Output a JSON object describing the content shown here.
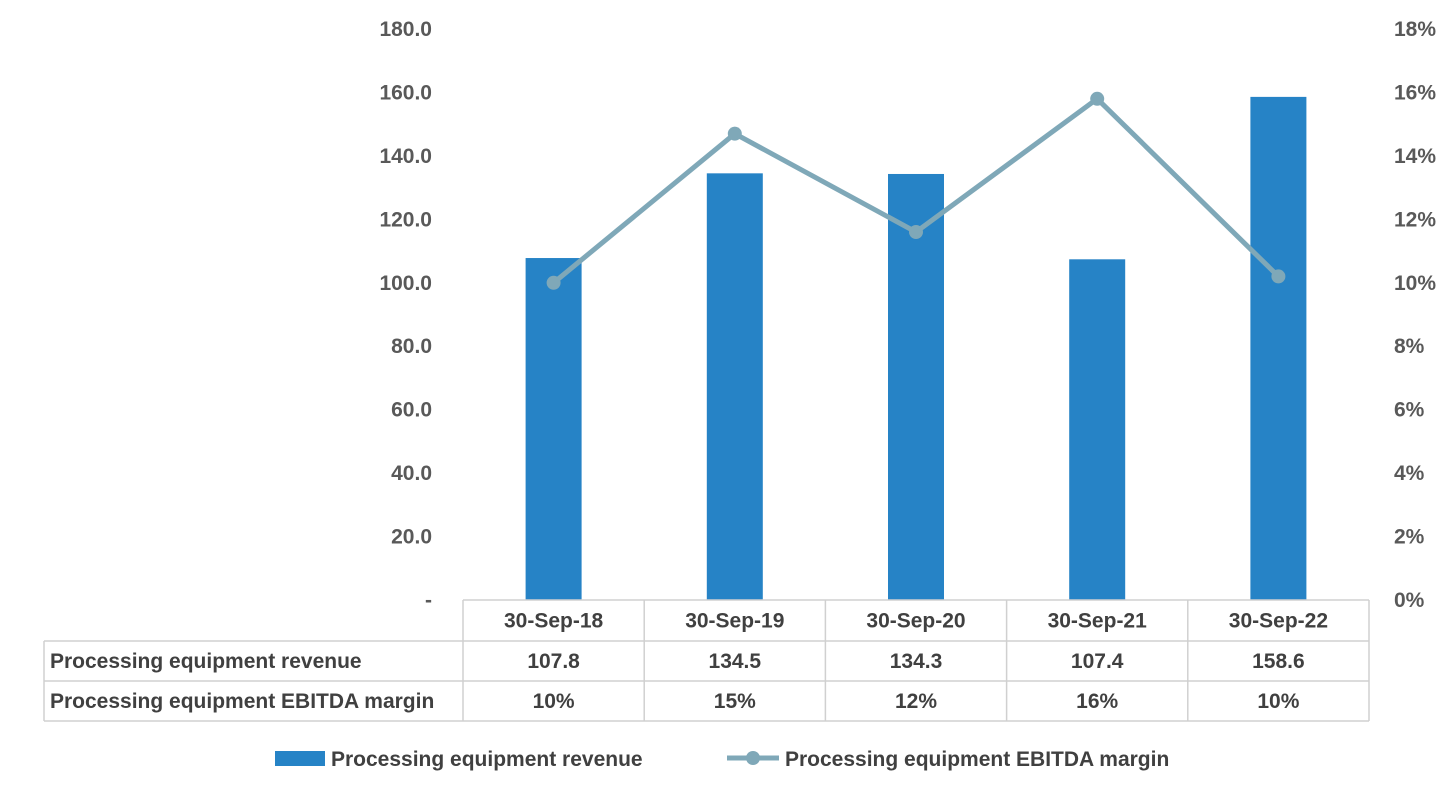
{
  "chart_data": {
    "type": "bar",
    "categories": [
      "30-Sep-18",
      "30-Sep-19",
      "30-Sep-20",
      "30-Sep-21",
      "30-Sep-22"
    ],
    "series": [
      {
        "name": "Processing equipment revenue",
        "type": "bar",
        "axis": "left",
        "values": [
          107.8,
          134.5,
          134.3,
          107.4,
          158.6
        ],
        "labels": [
          "107.8",
          "134.5",
          "134.3",
          "107.4",
          "158.6"
        ],
        "color": "#2683C6"
      },
      {
        "name": "Processing equipment EBITDA margin",
        "type": "line",
        "axis": "right",
        "values": [
          0.1,
          0.147,
          0.116,
          0.158,
          0.102
        ],
        "labels": [
          "10%",
          "15%",
          "12%",
          "16%",
          "10%"
        ],
        "color": "#7FA8B8"
      }
    ],
    "y_left": {
      "min": 0,
      "max": 180,
      "step": 20,
      "ticks": [
        "-",
        "20.0",
        "40.0",
        "60.0",
        "80.0",
        "100.0",
        "120.0",
        "140.0",
        "160.0",
        "180.0"
      ]
    },
    "y_right": {
      "min": 0,
      "max": 0.18,
      "step": 0.02,
      "ticks": [
        "0%",
        "2%",
        "4%",
        "6%",
        "8%",
        "10%",
        "12%",
        "14%",
        "16%",
        "18%"
      ]
    },
    "data_table": true,
    "legend_position": "bottom",
    "grid": false
  }
}
